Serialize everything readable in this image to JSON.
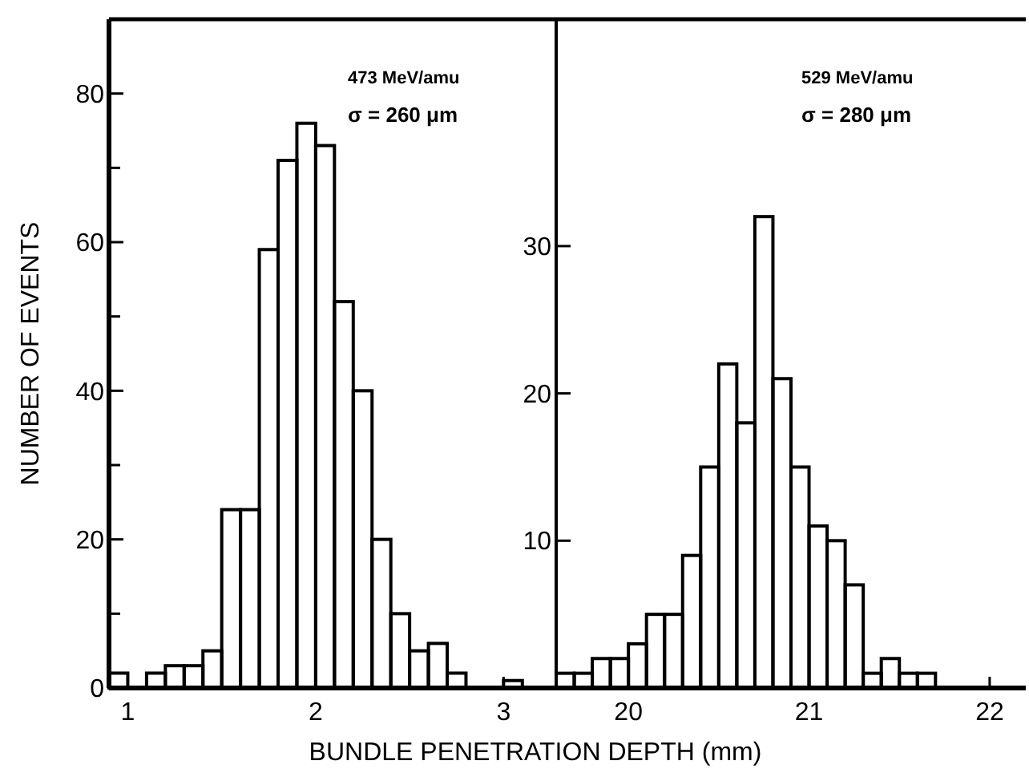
{
  "chart_data": [
    {
      "type": "histogram",
      "xlabel": "BUNDLE PENETRATION DEPTH (mm)",
      "ylabel": "NUMBER OF EVENTS",
      "color": "#000000",
      "bins": [
        0.9,
        1.0,
        1.1,
        1.2,
        1.3,
        1.4,
        1.5,
        1.6,
        1.7,
        1.8,
        1.9,
        2.0,
        2.1,
        2.2,
        2.3,
        2.4,
        2.5,
        2.6,
        2.7,
        2.8,
        2.9,
        3.0,
        3.1
      ],
      "values": [
        2,
        0,
        2,
        3,
        3,
        5,
        24,
        24,
        59,
        71,
        76,
        73,
        52,
        40,
        20,
        10,
        5,
        6,
        2,
        0,
        0,
        1
      ],
      "xlim": [
        0.9,
        3.28
      ],
      "xticks": [
        1,
        2,
        3
      ],
      "ylim": [
        0,
        90
      ],
      "yticks": [
        0,
        {
          "value": 10,
          "label": null
        },
        20,
        {
          "value": 30,
          "label": null
        },
        40,
        {
          "value": 50,
          "label": null
        },
        60,
        {
          "value": 70,
          "label": null
        },
        80
      ],
      "annotations": [
        "473 MeV/amu",
        "σ = 260 μm"
      ]
    },
    {
      "type": "histogram",
      "color": "#000000",
      "bins": [
        19.6,
        19.7,
        19.8,
        19.9,
        20.0,
        20.1,
        20.2,
        20.3,
        20.4,
        20.5,
        20.6,
        20.7,
        20.8,
        20.9,
        21.0,
        21.1,
        21.2,
        21.3,
        21.4,
        21.5,
        21.6,
        21.7
      ],
      "values": [
        1,
        1,
        2,
        2,
        3,
        5,
        5,
        9,
        15,
        22,
        18,
        32,
        21,
        15,
        11,
        10,
        7,
        1,
        2,
        1,
        1
      ],
      "xlim": [
        19.6,
        22.2
      ],
      "xticks": [
        20,
        {
          "value": 20.5,
          "label": null
        },
        21,
        {
          "value": 21.5,
          "label": null
        },
        22
      ],
      "ylim": [
        0,
        45.4
      ],
      "yticks": [
        10,
        20,
        30
      ],
      "annotations": [
        "529 MeV/amu",
        "σ = 280 μm"
      ]
    }
  ]
}
